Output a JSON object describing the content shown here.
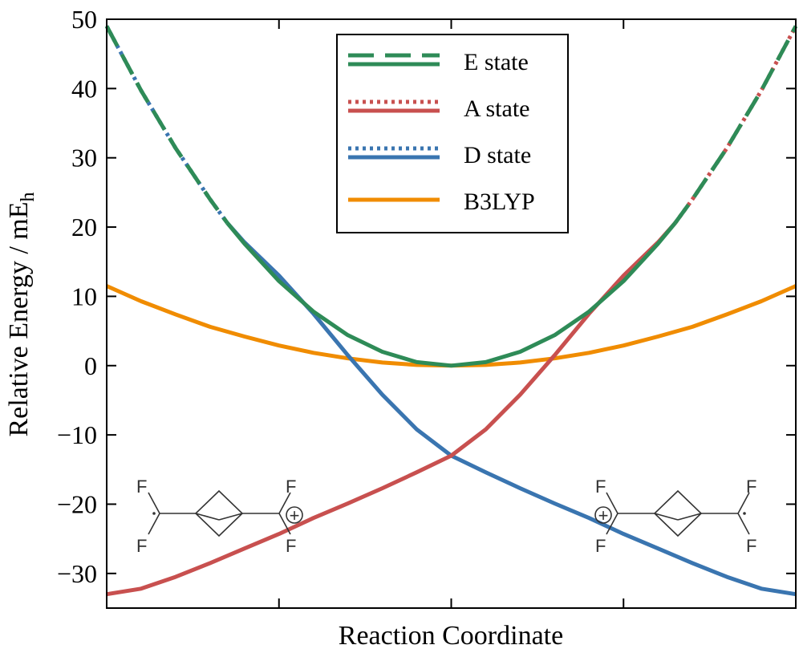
{
  "colors": {
    "e_state": "#2e8b57",
    "a_state": "#c8504f",
    "d_state": "#3a75b0",
    "b3lyp": "#f08c00",
    "axis": "#000000",
    "molecule": "#333333"
  },
  "chart_data": {
    "type": "line",
    "xlabel": "Reaction Coordinate",
    "ylabel_main": "Relative Energy / mE",
    "ylabel_sub": "h",
    "xlim": [
      -1.0,
      1.0
    ],
    "ylim": [
      -35,
      50
    ],
    "yticks": [
      50,
      40,
      30,
      20,
      10,
      0,
      -10,
      -20,
      -30
    ],
    "ytick_labels": [
      "50",
      "40",
      "30",
      "20",
      "10",
      "0",
      "−10",
      "−20",
      "−30"
    ],
    "xticks": [
      -0.5,
      0.0,
      0.5
    ],
    "grid": false,
    "legend_position": "top-center",
    "legend": [
      {
        "label": "E state",
        "color_key": "e_state",
        "top_style": "dashed"
      },
      {
        "label": "A state",
        "color_key": "a_state",
        "top_style": "dotted"
      },
      {
        "label": "D state",
        "color_key": "d_state",
        "top_style": "dotted"
      },
      {
        "label": "B3LYP",
        "color_key": "b3lyp",
        "top_style": "none"
      }
    ],
    "series": [
      {
        "name": "E state",
        "color_key": "e_state",
        "solid_range": [
          -0.65,
          0.65
        ],
        "x": [
          -1.0,
          -0.9,
          -0.8,
          -0.7,
          -0.65,
          -0.6,
          -0.5,
          -0.4,
          -0.3,
          -0.2,
          -0.1,
          0.0,
          0.1,
          0.2,
          0.3,
          0.4,
          0.5,
          0.6,
          0.65,
          0.7,
          0.8,
          0.9,
          1.0
        ],
        "y": [
          49.0,
          39.7,
          31.4,
          24.0,
          20.6,
          17.6,
          12.2,
          7.8,
          4.4,
          2.0,
          0.5,
          0.0,
          0.5,
          2.0,
          4.4,
          7.8,
          12.2,
          17.6,
          20.6,
          24.0,
          31.4,
          39.7,
          49.0
        ]
      },
      {
        "name": "A state",
        "color_key": "a_state",
        "solid_range": [
          -1.0,
          0.65
        ],
        "x": [
          -1.0,
          -0.9,
          -0.8,
          -0.7,
          -0.6,
          -0.5,
          -0.4,
          -0.3,
          -0.2,
          -0.1,
          0.0,
          0.1,
          0.2,
          0.3,
          0.4,
          0.5,
          0.6,
          0.65,
          0.7,
          0.8,
          0.9,
          1.0
        ],
        "y": [
          -33.0,
          -32.2,
          -30.5,
          -28.5,
          -26.4,
          -24.3,
          -22.0,
          -19.9,
          -17.7,
          -15.4,
          -13.0,
          -9.2,
          -4.2,
          1.5,
          7.5,
          13.0,
          17.8,
          20.6,
          24.0,
          31.4,
          39.7,
          49.0
        ]
      },
      {
        "name": "D state",
        "color_key": "d_state",
        "solid_range": [
          -0.65,
          1.0
        ],
        "x": [
          -1.0,
          -0.9,
          -0.8,
          -0.7,
          -0.65,
          -0.6,
          -0.5,
          -0.4,
          -0.3,
          -0.2,
          -0.1,
          0.0,
          0.1,
          0.2,
          0.3,
          0.4,
          0.5,
          0.6,
          0.7,
          0.8,
          0.9,
          1.0
        ],
        "y": [
          49.0,
          39.7,
          31.4,
          24.0,
          20.6,
          17.8,
          13.0,
          7.5,
          1.5,
          -4.2,
          -9.2,
          -13.0,
          -15.4,
          -17.7,
          -19.9,
          -22.0,
          -24.3,
          -26.4,
          -28.5,
          -30.5,
          -32.2,
          -33.0
        ]
      },
      {
        "name": "B3LYP",
        "color_key": "b3lyp",
        "solid_range": [
          -1.0,
          1.0
        ],
        "x": [
          -1.0,
          -0.9,
          -0.8,
          -0.7,
          -0.6,
          -0.5,
          -0.4,
          -0.3,
          -0.2,
          -0.1,
          0.0,
          0.1,
          0.2,
          0.3,
          0.4,
          0.5,
          0.6,
          0.7,
          0.8,
          0.9,
          1.0
        ],
        "y": [
          11.5,
          9.3,
          7.4,
          5.6,
          4.2,
          2.9,
          1.85,
          1.05,
          0.45,
          0.1,
          0.0,
          0.1,
          0.45,
          1.05,
          1.85,
          2.9,
          4.2,
          5.6,
          7.4,
          9.3,
          11.5
        ]
      }
    ]
  },
  "molecules": {
    "left": {
      "atoms": [
        "F",
        "F",
        "F",
        "F"
      ],
      "charge_symbol": "+"
    },
    "right": {
      "atoms": [
        "F",
        "F",
        "F",
        "F"
      ],
      "charge_symbol": "+"
    }
  }
}
